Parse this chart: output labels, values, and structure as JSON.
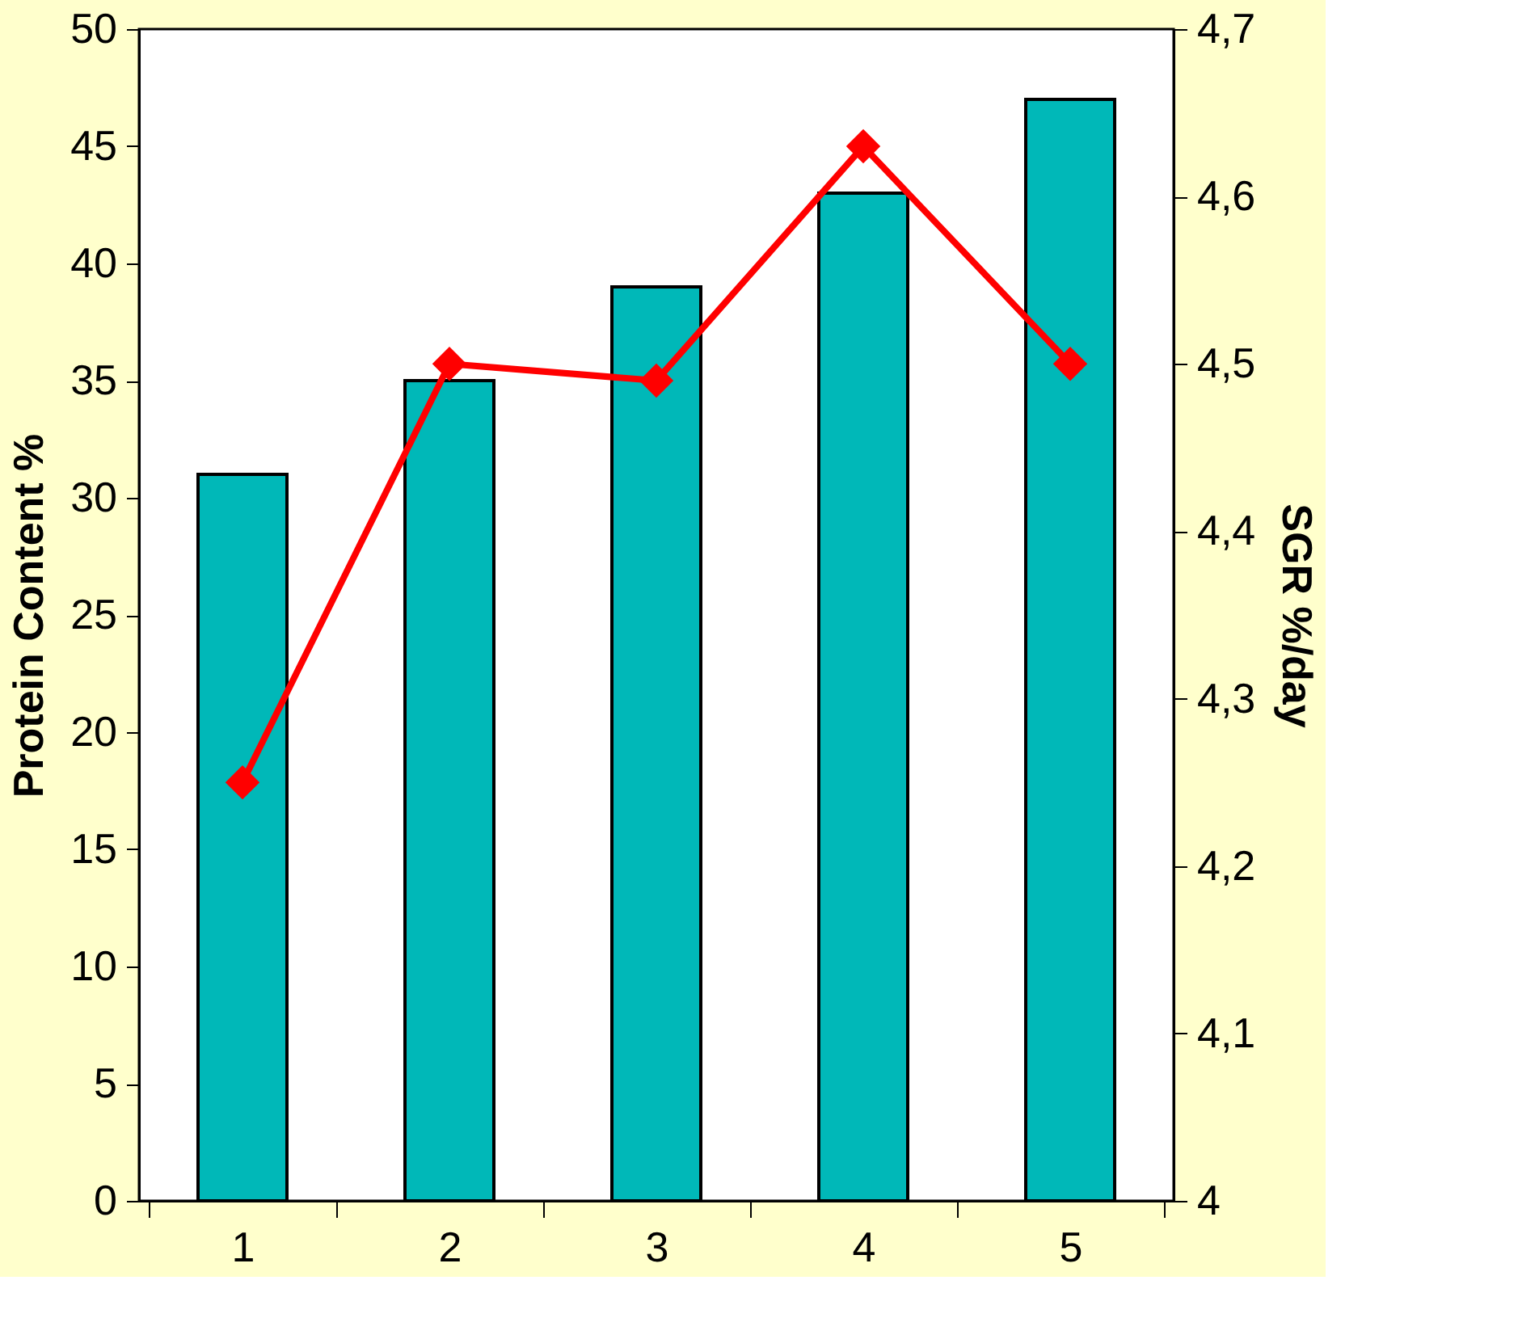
{
  "chart_data": {
    "type": "bar",
    "categories": [
      "1",
      "2",
      "3",
      "4",
      "5"
    ],
    "ylabel": "Protein Content %",
    "y2label": "SGR %/day",
    "ylim": [
      0,
      50
    ],
    "yticks": [
      0,
      5,
      10,
      15,
      20,
      25,
      30,
      35,
      40,
      45,
      50
    ],
    "y2lim": [
      4,
      4.7
    ],
    "y2ticks": [
      {
        "value": 4,
        "label": "4"
      },
      {
        "value": 4.1,
        "label": "4,1"
      },
      {
        "value": 4.2,
        "label": "4,2"
      },
      {
        "value": 4.3,
        "label": "4,3"
      },
      {
        "value": 4.4,
        "label": "4,4"
      },
      {
        "value": 4.5,
        "label": "4,5"
      },
      {
        "value": 4.6,
        "label": "4,6"
      },
      {
        "value": 4.7,
        "label": "4,7"
      }
    ],
    "series": [
      {
        "color": "#00b8b8",
        "values": [
          31,
          35,
          39,
          43,
          47
        ]
      },
      {
        "type": "line",
        "axis": "y2",
        "color": "#ff0000",
        "marker": "diamond",
        "line_style": "solid",
        "values": [
          4.25,
          4.5,
          4.49,
          4.63,
          4.5
        ]
      }
    ],
    "grid": false
  }
}
